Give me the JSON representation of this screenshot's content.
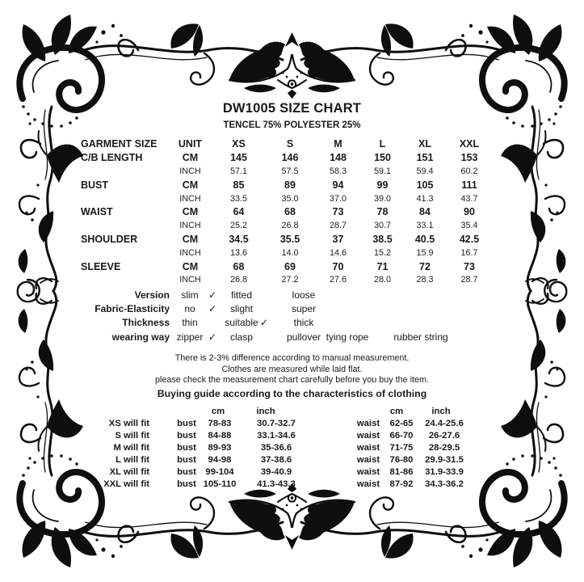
{
  "header": {
    "title": "DW1005 SIZE CHART",
    "material": "TENCEL 75% POLYESTER 25%"
  },
  "size_table": {
    "columns": [
      "GARMENT SIZE",
      "UNIT",
      "XS",
      "S",
      "M",
      "L",
      "XL",
      "XXL"
    ],
    "rows": [
      {
        "label": "C/B LENGTH",
        "unit": "CM",
        "bold": true,
        "values": [
          "145",
          "146",
          "148",
          "150",
          "151",
          "153"
        ]
      },
      {
        "label": "",
        "unit": "INCH",
        "bold": false,
        "values": [
          "57.1",
          "57.5",
          "58.3",
          "59.1",
          "59.4",
          "60.2"
        ]
      },
      {
        "label": "BUST",
        "unit": "CM",
        "bold": true,
        "values": [
          "85",
          "89",
          "94",
          "99",
          "105",
          "111"
        ]
      },
      {
        "label": "",
        "unit": "INCH",
        "bold": false,
        "values": [
          "33.5",
          "35.0",
          "37.0",
          "39.0",
          "41.3",
          "43.7"
        ]
      },
      {
        "label": "WAIST",
        "unit": "CM",
        "bold": true,
        "values": [
          "64",
          "68",
          "73",
          "78",
          "84",
          "90"
        ]
      },
      {
        "label": "",
        "unit": "INCH",
        "bold": false,
        "values": [
          "25.2",
          "26.8",
          "28.7",
          "30.7",
          "33.1",
          "35.4"
        ]
      },
      {
        "label": "SHOULDER",
        "unit": "CM",
        "bold": true,
        "values": [
          "34.5",
          "35.5",
          "37",
          "38.5",
          "40.5",
          "42.5"
        ]
      },
      {
        "label": "",
        "unit": "INCH",
        "bold": false,
        "values": [
          "13.6",
          "14.0",
          "14.6",
          "15.2",
          "15.9",
          "16.7"
        ]
      },
      {
        "label": "SLEEVE",
        "unit": "CM",
        "bold": true,
        "values": [
          "68",
          "69",
          "70",
          "71",
          "72",
          "73"
        ]
      },
      {
        "label": "",
        "unit": "INCH",
        "bold": false,
        "values": [
          "26.8",
          "27.2",
          "27.6",
          "28.0",
          "28.3",
          "28.7"
        ]
      }
    ]
  },
  "check_mark": "✓",
  "attributes": [
    {
      "label": "Version",
      "options": [
        {
          "text": "slim",
          "checked": true
        },
        {
          "text": "fitted"
        },
        {
          "text": "loose"
        }
      ]
    },
    {
      "label": "Fabric-Elasticity",
      "options": [
        {
          "text": "no",
          "checked": true
        },
        {
          "text": "slight"
        },
        {
          "text": "super"
        }
      ]
    },
    {
      "label": "Thickness",
      "options": [
        {
          "text": "thin"
        },
        {
          "text": "suitable",
          "checked": true
        },
        {
          "text": "thick"
        }
      ]
    },
    {
      "label": "wearing way",
      "options": [
        {
          "text": "zipper",
          "checked": true
        },
        {
          "text": "clasp"
        },
        {
          "text": "pullover"
        },
        {
          "text": "tying rope"
        },
        {
          "text": "rubber string"
        }
      ]
    }
  ],
  "notes": [
    "There is 2-3% difference according to manual measurement.",
    "Clothes are measured while laid flat.",
    "please check the measurement chart carefully before you buy the item."
  ],
  "buying_guide": {
    "title": "Buying guide according to the characteristics of clothing",
    "col_headers": [
      "cm",
      "inch",
      "cm",
      "inch"
    ],
    "rows": [
      {
        "size": "XS will fit",
        "bust_label": "bust",
        "bust_cm": "78-83",
        "bust_inch": "30.7-32.7",
        "waist_label": "waist",
        "waist_cm": "62-65",
        "waist_inch": "24.4-25.6"
      },
      {
        "size": "S will fit",
        "bust_label": "bust",
        "bust_cm": "84-88",
        "bust_inch": "33.1-34.6",
        "waist_label": "waist",
        "waist_cm": "66-70",
        "waist_inch": "26-27.6"
      },
      {
        "size": "M will fit",
        "bust_label": "bust",
        "bust_cm": "89-93",
        "bust_inch": "35-36.6",
        "waist_label": "waist",
        "waist_cm": "71-75",
        "waist_inch": "28-29.5"
      },
      {
        "size": "L will fit",
        "bust_label": "bust",
        "bust_cm": "94-98",
        "bust_inch": "37-38.6",
        "waist_label": "waist",
        "waist_cm": "76-80",
        "waist_inch": "29.9-31.5"
      },
      {
        "size": "XL will fit",
        "bust_label": "bust",
        "bust_cm": "99-104",
        "bust_inch": "39-40.9",
        "waist_label": "waist",
        "waist_cm": "81-86",
        "waist_inch": "31.9-33.9"
      },
      {
        "size": "XXL will fit",
        "bust_label": "bust",
        "bust_cm": "105-110",
        "bust_inch": "41.3-43.3",
        "waist_label": "waist",
        "waist_cm": "87-92",
        "waist_inch": "34.3-36.2"
      }
    ]
  },
  "colors": {
    "ink": "#1a1a1a",
    "ornament": "#0e0e0e",
    "background": "#ffffff"
  }
}
